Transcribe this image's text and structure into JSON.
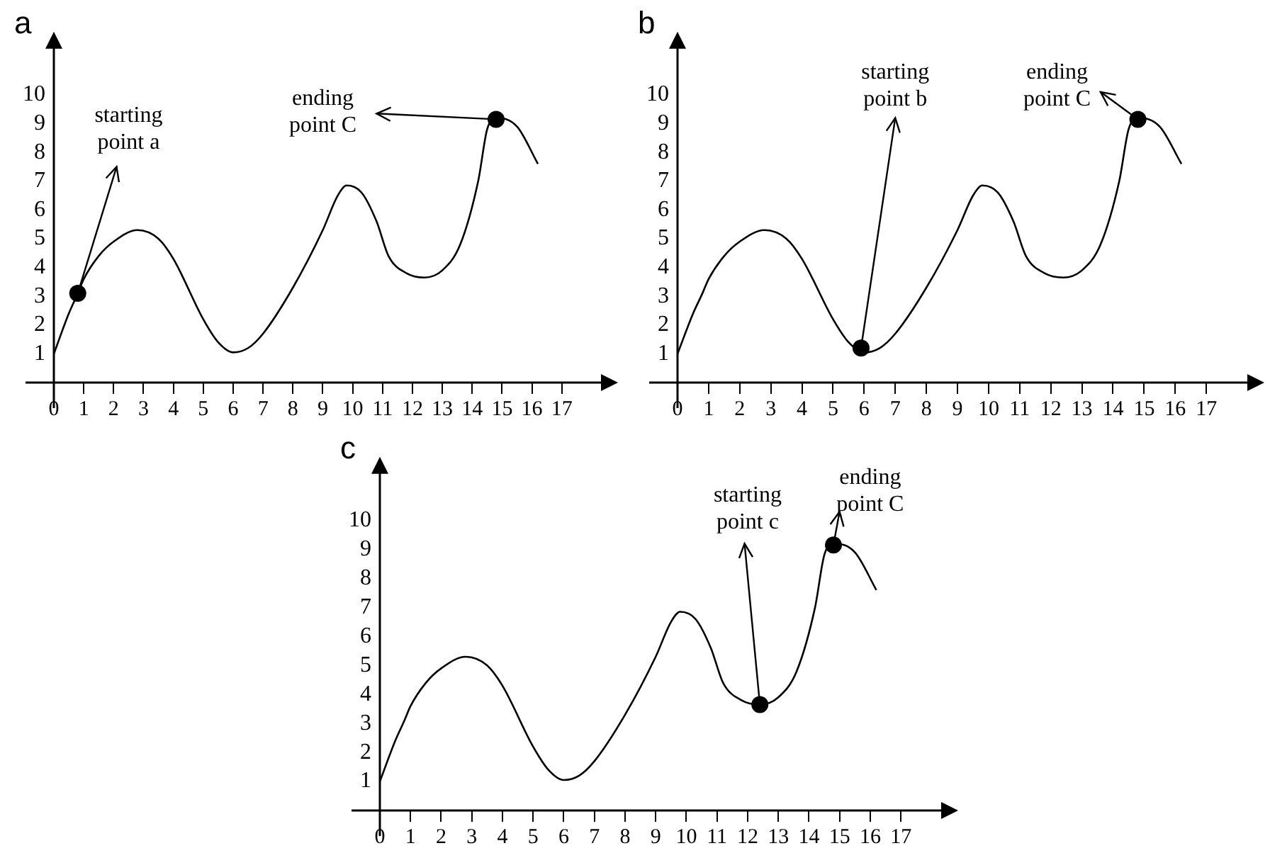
{
  "chart_data": [
    {
      "type": "line",
      "title": "a",
      "x": [
        0,
        0.5,
        0.8,
        1,
        1.5,
        2,
        2.8,
        3.5,
        4,
        5,
        5.5,
        6,
        6.5,
        7,
        8,
        9,
        9.5,
        9.8,
        10.3,
        10.8,
        11.2,
        11.8,
        12.4,
        13,
        13.6,
        14.2,
        14.5,
        14.8,
        15.5,
        16.2
      ],
      "series": [
        {
          "color": "#000000",
          "marker": "none",
          "values": [
            1,
            2.4,
            3.1,
            3.6,
            4.4,
            4.9,
            5.3,
            5,
            4.3,
            2.2,
            1.4,
            1.05,
            1.2,
            1.7,
            3.3,
            5.3,
            6.5,
            6.85,
            6.6,
            5.6,
            4.4,
            3.8,
            3.65,
            3.9,
            4.8,
            7,
            8.8,
            9.2,
            8.9,
            7.6
          ]
        },
        {
          "type": "scatter",
          "marker": "circle",
          "color": "#000000",
          "x": [
            0.8,
            14.8
          ],
          "values": [
            3.1,
            9.15
          ]
        }
      ],
      "annotations": [
        {
          "text": "starting point a",
          "x": 0.8,
          "y": 3.1
        },
        {
          "text": "ending point C",
          "x": 14.8,
          "y": 9.15
        }
      ],
      "xlim": [
        0,
        18.5
      ],
      "ylim": [
        0,
        11.8
      ],
      "xticks": [
        0,
        1,
        2,
        3,
        4,
        5,
        6,
        7,
        8,
        9,
        10,
        11,
        12,
        13,
        14,
        15,
        16,
        17
      ],
      "yticks": [
        1,
        2,
        3,
        4,
        5,
        6,
        7,
        8,
        9,
        10
      ],
      "grid": false,
      "legend": false,
      "line_style": "solid"
    },
    {
      "type": "line",
      "title": "b",
      "x": [
        0,
        0.5,
        0.8,
        1,
        1.5,
        2,
        2.8,
        3.5,
        4,
        5,
        5.5,
        6,
        6.5,
        7,
        8,
        9,
        9.5,
        9.8,
        10.3,
        10.8,
        11.2,
        11.8,
        12.4,
        13,
        13.6,
        14.2,
        14.5,
        14.8,
        15.5,
        16.2
      ],
      "series": [
        {
          "color": "#000000",
          "marker": "none",
          "values": [
            1,
            2.4,
            3.1,
            3.6,
            4.4,
            4.9,
            5.3,
            5,
            4.3,
            2.2,
            1.4,
            1.05,
            1.2,
            1.7,
            3.3,
            5.3,
            6.5,
            6.85,
            6.6,
            5.6,
            4.4,
            3.8,
            3.65,
            3.9,
            4.8,
            7,
            8.8,
            9.2,
            8.9,
            7.6
          ]
        },
        {
          "type": "scatter",
          "marker": "circle",
          "color": "#000000",
          "x": [
            5.9,
            14.8
          ],
          "values": [
            1.2,
            9.15
          ]
        }
      ],
      "annotations": [
        {
          "text": "starting point b",
          "x": 5.9,
          "y": 1.2
        },
        {
          "text": "ending point C",
          "x": 14.8,
          "y": 9.15
        }
      ],
      "xlim": [
        0,
        18.5
      ],
      "ylim": [
        0,
        11.8
      ],
      "xticks": [
        0,
        1,
        2,
        3,
        4,
        5,
        6,
        7,
        8,
        9,
        10,
        11,
        12,
        13,
        14,
        15,
        16,
        17
      ],
      "yticks": [
        1,
        2,
        3,
        4,
        5,
        6,
        7,
        8,
        9,
        10
      ],
      "grid": false,
      "legend": false,
      "line_style": "solid"
    },
    {
      "type": "line",
      "title": "c",
      "x": [
        0,
        0.5,
        0.8,
        1,
        1.5,
        2,
        2.8,
        3.5,
        4,
        5,
        5.5,
        6,
        6.5,
        7,
        8,
        9,
        9.5,
        9.8,
        10.3,
        10.8,
        11.2,
        11.8,
        12.4,
        13,
        13.6,
        14.2,
        14.5,
        14.8,
        15.5,
        16.2
      ],
      "series": [
        {
          "color": "#000000",
          "marker": "none",
          "values": [
            1,
            2.4,
            3.1,
            3.6,
            4.4,
            4.9,
            5.3,
            5,
            4.3,
            2.2,
            1.4,
            1.05,
            1.2,
            1.7,
            3.3,
            5.3,
            6.5,
            6.85,
            6.6,
            5.6,
            4.4,
            3.8,
            3.65,
            3.9,
            4.8,
            7,
            8.8,
            9.2,
            8.9,
            7.6
          ]
        },
        {
          "type": "scatter",
          "marker": "circle",
          "color": "#000000",
          "x": [
            12.4,
            14.8
          ],
          "values": [
            3.65,
            9.15
          ]
        }
      ],
      "annotations": [
        {
          "text": "starting point c",
          "x": 12.4,
          "y": 3.65
        },
        {
          "text": "ending point C",
          "x": 14.8,
          "y": 9.15
        }
      ],
      "xlim": [
        0,
        18.5
      ],
      "ylim": [
        0,
        11.8
      ],
      "xticks": [
        0,
        1,
        2,
        3,
        4,
        5,
        6,
        7,
        8,
        9,
        10,
        11,
        12,
        13,
        14,
        15,
        16,
        17
      ],
      "yticks": [
        1,
        2,
        3,
        4,
        5,
        6,
        7,
        8,
        9,
        10
      ],
      "grid": false,
      "legend": false,
      "line_style": "solid"
    }
  ]
}
